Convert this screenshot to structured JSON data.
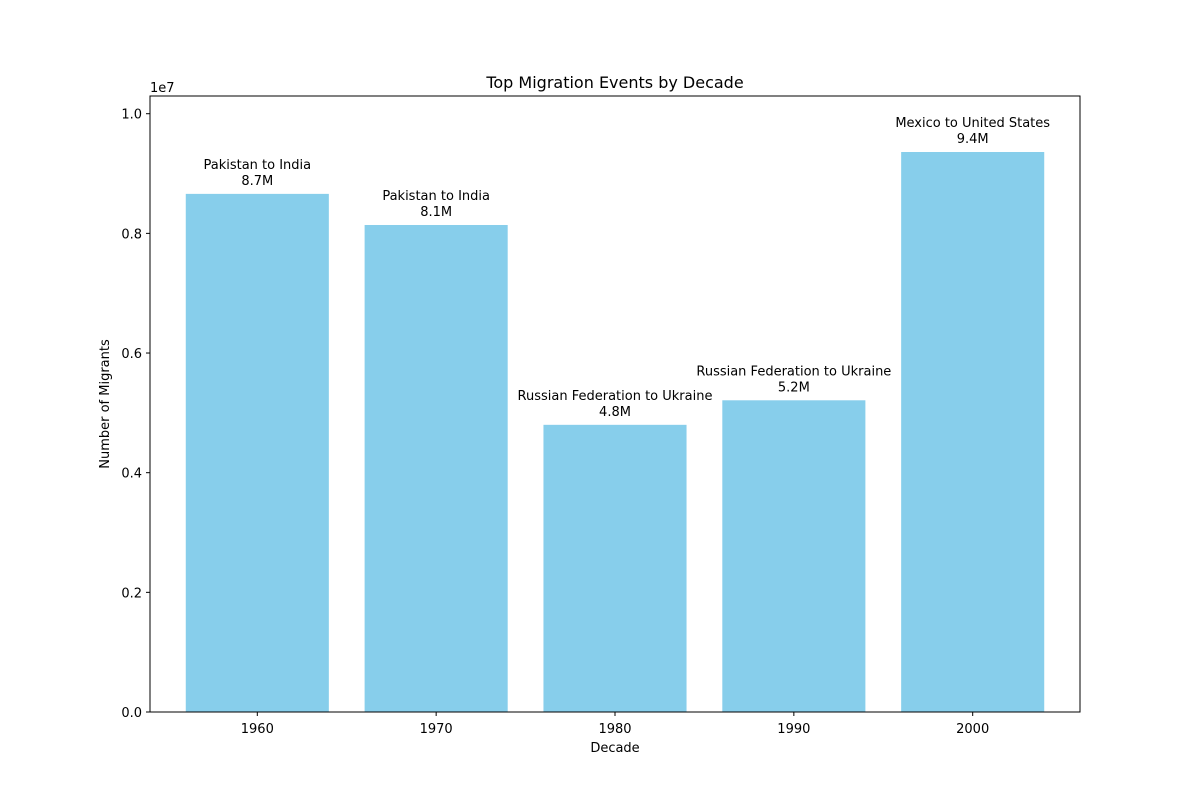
{
  "chart_data": {
    "type": "bar",
    "title": "Top Migration Events by Decade",
    "xlabel": "Decade",
    "ylabel": "Number of Migrants",
    "y_offset_label": "1e7",
    "categories": [
      "1960",
      "1970",
      "1980",
      "1990",
      "2000"
    ],
    "values": [
      8660000,
      8140000,
      4800000,
      5210000,
      9360000
    ],
    "bar_labels": [
      {
        "route": "Pakistan to India",
        "value_text": "8.7M"
      },
      {
        "route": "Pakistan to India",
        "value_text": "8.1M"
      },
      {
        "route": "Russian Federation to Ukraine",
        "value_text": "4.8M"
      },
      {
        "route": "Russian Federation to Ukraine",
        "value_text": "5.2M"
      },
      {
        "route": "Mexico to United States",
        "value_text": "9.4M"
      }
    ],
    "y_ticks": [
      0,
      2000000,
      4000000,
      6000000,
      8000000,
      10000000
    ],
    "y_tick_labels": [
      "0.0",
      "0.2",
      "0.4",
      "0.6",
      "0.8",
      "1.0"
    ],
    "ylim": [
      0,
      10296000
    ],
    "grid": false,
    "bar_color": "#87CEEB"
  }
}
